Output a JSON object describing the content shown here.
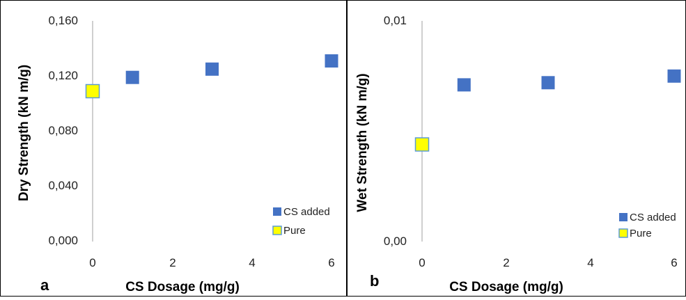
{
  "chart_data": [
    {
      "type": "scatter",
      "panel_label": "a",
      "xlabel": "CS Dosage (mg/g)",
      "ylabel": "Dry Strength (kN m/g)",
      "xlim": [
        0,
        6
      ],
      "ylim": [
        0,
        0.16
      ],
      "x_ticks": [
        "0",
        "2",
        "4",
        "6"
      ],
      "y_ticks": [
        "0,000",
        "0,040",
        "0,080",
        "0,120",
        "0,160"
      ],
      "grid": false,
      "legend_position": "bottom-right",
      "series": [
        {
          "name": "CS added",
          "color": "#4472C4",
          "points": [
            {
              "x": 1,
              "y": 0.119
            },
            {
              "x": 3,
              "y": 0.125
            },
            {
              "x": 6,
              "y": 0.131
            }
          ]
        },
        {
          "name": "Pure",
          "color": "#FFFF00",
          "edge": "#5B9BD5",
          "points": [
            {
              "x": 0,
              "y": 0.109
            }
          ]
        }
      ]
    },
    {
      "type": "scatter",
      "panel_label": "b",
      "xlabel": "CS Dosage (mg/g)",
      "ylabel": "Wet Strength (kN m/g)",
      "xlim": [
        0,
        6
      ],
      "ylim": [
        0,
        0.01
      ],
      "x_ticks": [
        "0",
        "2",
        "4",
        "6"
      ],
      "y_ticks": [
        "0,00",
        "0,01"
      ],
      "grid": false,
      "legend_position": "bottom-right",
      "series": [
        {
          "name": "CS added",
          "color": "#4472C4",
          "points": [
            {
              "x": 1,
              "y": 0.0071
            },
            {
              "x": 3,
              "y": 0.0072
            },
            {
              "x": 6,
              "y": 0.0075
            }
          ]
        },
        {
          "name": "Pure",
          "color": "#FFFF00",
          "edge": "#5B9BD5",
          "points": [
            {
              "x": 0,
              "y": 0.0044
            }
          ]
        }
      ]
    }
  ]
}
